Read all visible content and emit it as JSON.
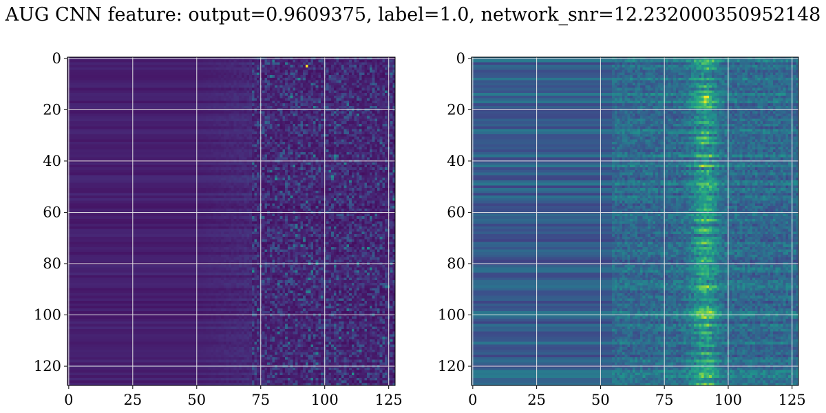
{
  "title": "AUG CNN feature: output=0.9609375, label=1.0, network_snr=12.232000350952148",
  "colormap": "viridis",
  "grid": true,
  "chart_data": [
    {
      "type": "heatmap",
      "rows": 128,
      "cols": 128,
      "x_ticks": [
        "0",
        "25",
        "50",
        "75",
        "100",
        "125"
      ],
      "y_ticks": [
        "0",
        "20",
        "40",
        "60",
        "80",
        "100",
        "120"
      ],
      "xlim": [
        -0.5,
        127.5
      ],
      "ylim": [
        127.5,
        -0.5
      ],
      "value_range": [
        0,
        1
      ],
      "description_values": {
        "left_flat_level": 0.06,
        "right_noise_level": 0.2,
        "peak": 1.0
      }
    },
    {
      "type": "heatmap",
      "rows": 128,
      "cols": 128,
      "x_ticks": [
        "0",
        "25",
        "50",
        "75",
        "100",
        "125"
      ],
      "y_ticks": [
        "0",
        "20",
        "40",
        "60",
        "80",
        "100",
        "120"
      ],
      "xlim": [
        -0.5,
        127.5
      ],
      "ylim": [
        127.5,
        -0.5
      ],
      "value_range": [
        0,
        1
      ],
      "description_values": {
        "left_flat_level": 0.2,
        "right_noise_level": 0.35,
        "peak": 1.0
      }
    }
  ]
}
